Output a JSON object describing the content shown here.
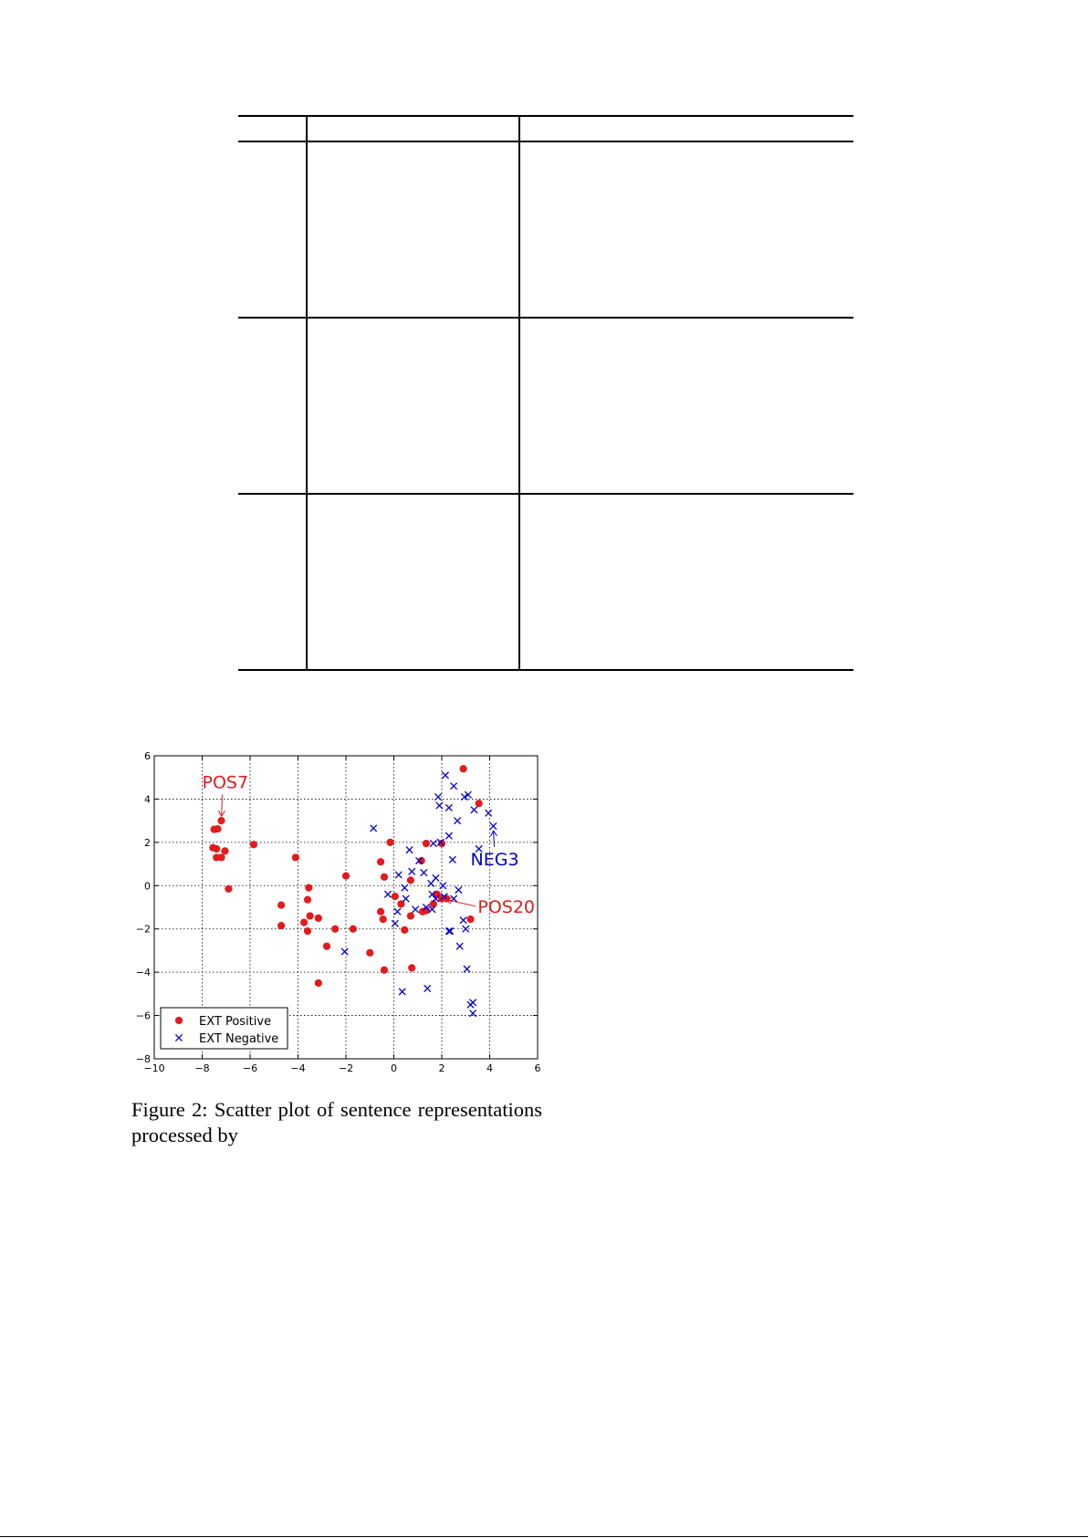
{
  "caption": {
    "text": "Figure 2: Scatter plot of sentence representations processed by"
  },
  "chart_data": {
    "type": "scatter",
    "title": "",
    "xlabel": "",
    "ylabel": "",
    "xlim": [
      -10,
      6
    ],
    "ylim": [
      -8,
      6
    ],
    "x_ticks": [
      -10,
      -8,
      -6,
      -4,
      -2,
      0,
      2,
      4,
      6
    ],
    "y_ticks": [
      -8,
      -6,
      -4,
      -2,
      0,
      2,
      4,
      6
    ],
    "x_tick_labels": [
      "−10",
      "−8",
      "−6",
      "−4",
      "−2",
      "0",
      "2",
      "4",
      "6"
    ],
    "y_tick_labels": [
      "−8",
      "−6",
      "−4",
      "−2",
      "0",
      "2",
      "4",
      "6"
    ],
    "grid": true,
    "legend_position": "lower-left",
    "series": [
      {
        "name": "EXT Positive",
        "marker": "circle",
        "color": "#e41a1c",
        "points": [
          [
            -7.2,
            3.0
          ],
          [
            -7.5,
            2.6
          ],
          [
            -7.35,
            2.62
          ],
          [
            -7.55,
            1.75
          ],
          [
            -7.4,
            1.7
          ],
          [
            -7.05,
            1.6
          ],
          [
            -7.4,
            1.3
          ],
          [
            -7.2,
            1.3
          ],
          [
            -6.9,
            -0.15
          ],
          [
            -5.85,
            1.9
          ],
          [
            -4.1,
            1.3
          ],
          [
            -4.7,
            -0.9
          ],
          [
            -4.7,
            -1.85
          ],
          [
            -3.55,
            -0.1
          ],
          [
            -3.6,
            -0.65
          ],
          [
            -3.5,
            -1.4
          ],
          [
            -3.75,
            -1.7
          ],
          [
            -3.6,
            -2.1
          ],
          [
            -3.15,
            -1.5
          ],
          [
            -2.8,
            -2.8
          ],
          [
            -2.45,
            -2.0
          ],
          [
            -3.15,
            -4.5
          ],
          [
            -2.0,
            0.45
          ],
          [
            -1.7,
            -2.0
          ],
          [
            -1.0,
            -3.1
          ],
          [
            -0.55,
            1.1
          ],
          [
            -0.4,
            0.4
          ],
          [
            -0.55,
            -1.2
          ],
          [
            -0.45,
            -1.55
          ],
          [
            -0.4,
            -3.9
          ],
          [
            -0.15,
            2.0
          ],
          [
            0.05,
            -0.5
          ],
          [
            0.3,
            -0.85
          ],
          [
            0.45,
            -2.05
          ],
          [
            0.7,
            0.25
          ],
          [
            0.7,
            -1.4
          ],
          [
            0.75,
            -3.8
          ],
          [
            1.15,
            1.15
          ],
          [
            1.2,
            -1.2
          ],
          [
            1.35,
            -1.15
          ],
          [
            1.35,
            1.95
          ],
          [
            1.65,
            -0.85
          ],
          [
            1.8,
            -0.4
          ],
          [
            2.0,
            1.95
          ],
          [
            2.0,
            -0.6
          ],
          [
            2.2,
            -0.6
          ],
          [
            2.9,
            5.4
          ],
          [
            3.2,
            -1.55
          ],
          [
            3.55,
            3.8
          ]
        ]
      },
      {
        "name": "EXT Negative",
        "marker": "x",
        "color": "#0000cc",
        "points": [
          [
            -0.85,
            2.65
          ],
          [
            -2.05,
            -3.05
          ],
          [
            -0.25,
            -0.4
          ],
          [
            0.05,
            -1.75
          ],
          [
            0.15,
            -1.2
          ],
          [
            0.2,
            0.5
          ],
          [
            0.45,
            -0.1
          ],
          [
            0.5,
            -0.6
          ],
          [
            0.35,
            -4.9
          ],
          [
            0.65,
            1.65
          ],
          [
            0.75,
            0.65
          ],
          [
            0.9,
            -1.1
          ],
          [
            1.05,
            1.15
          ],
          [
            1.25,
            0.6
          ],
          [
            1.35,
            -1.0
          ],
          [
            1.4,
            -4.75
          ],
          [
            1.55,
            0.1
          ],
          [
            1.6,
            -0.4
          ],
          [
            1.6,
            -1.1
          ],
          [
            1.65,
            1.95
          ],
          [
            1.75,
            0.35
          ],
          [
            1.75,
            -0.6
          ],
          [
            1.85,
            4.1
          ],
          [
            1.9,
            3.7
          ],
          [
            1.95,
            2.0
          ],
          [
            2.05,
            0.0
          ],
          [
            2.1,
            -0.5
          ],
          [
            2.15,
            5.1
          ],
          [
            2.3,
            3.6
          ],
          [
            2.3,
            2.3
          ],
          [
            2.3,
            -2.1
          ],
          [
            2.35,
            -2.1
          ],
          [
            2.45,
            1.2
          ],
          [
            2.5,
            4.6
          ],
          [
            2.5,
            -0.6
          ],
          [
            2.65,
            3.0
          ],
          [
            2.7,
            -0.2
          ],
          [
            2.75,
            -2.8
          ],
          [
            2.9,
            -1.6
          ],
          [
            2.95,
            4.1
          ],
          [
            3.0,
            -2.0
          ],
          [
            3.05,
            -3.85
          ],
          [
            3.1,
            4.2
          ],
          [
            3.2,
            -5.5
          ],
          [
            3.3,
            -5.4
          ],
          [
            3.3,
            -5.9
          ],
          [
            3.35,
            3.5
          ],
          [
            3.55,
            1.7
          ],
          [
            3.95,
            3.35
          ],
          [
            4.15,
            2.75
          ]
        ]
      }
    ],
    "annotations": [
      {
        "text": "POS7",
        "color": "#e41a1c",
        "point": [
          -7.2,
          3.0
        ],
        "text_at": [
          -8.0,
          4.5
        ]
      },
      {
        "text": "NEG3",
        "color": "#0000cc",
        "point": [
          4.15,
          2.75
        ],
        "text_at": [
          3.2,
          0.95
        ]
      },
      {
        "text": "POS20",
        "color": "#e41a1c",
        "point": [
          2.0,
          -0.6
        ],
        "text_at": [
          3.5,
          -1.25
        ]
      }
    ]
  }
}
